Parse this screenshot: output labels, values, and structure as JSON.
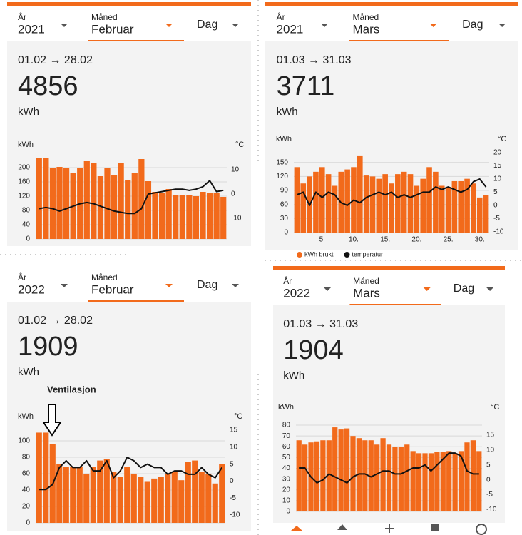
{
  "panels": [
    {
      "year_label": "År",
      "year": "2021",
      "month_label": "Måned",
      "month": "Februar",
      "day_label": "Dag",
      "range": "01.02 → 28.02",
      "total": 4856,
      "unit": "kWh",
      "chart": {
        "type": "bar",
        "y_label": "kWh",
        "y2_label": "°C",
        "grid": true,
        "x": [
          1,
          2,
          3,
          4,
          5,
          6,
          7,
          8,
          9,
          10,
          11,
          12,
          13,
          14,
          15,
          16,
          17,
          18,
          19,
          20,
          21,
          22,
          23,
          24,
          25,
          26,
          27,
          28
        ],
        "xlim": [
          0.5,
          28.5
        ],
        "ylim": [
          0,
          226
        ],
        "yticks": [
          0,
          40,
          80,
          120,
          160,
          200
        ],
        "y2lim": [
          -18.5,
          14.7
        ],
        "y2ticks": [
          -10,
          0,
          10
        ],
        "series": [
          {
            "color": "#f26a1b",
            "values": [
              226,
              226,
              200,
              202,
              198,
              186,
              200,
              218,
              212,
              176,
              200,
              180,
              212,
              166,
              186,
              224,
              162,
              132,
              128,
              140,
              122,
              124,
              124,
              120,
              132,
              130,
              128,
              118
            ]
          },
          {
            "type": "line",
            "axis": "y2",
            "color": "#111111",
            "values": [
              -6,
              -5.5,
              -6,
              -7,
              -6,
              -5,
              -4,
              -3.5,
              -4,
              -5,
              -6,
              -7,
              -7.5,
              -8,
              -8,
              -6,
              0,
              0.5,
              1,
              1.5,
              2,
              2,
              1.5,
              2,
              3,
              5.5,
              1,
              1.5
            ]
          }
        ]
      }
    },
    {
      "year_label": "År",
      "year": "2021",
      "month_label": "Måned",
      "month": "Mars",
      "day_label": "Dag",
      "range": "01.03 → 31.03",
      "total": 3711,
      "unit": "kWh",
      "chart": {
        "type": "bar",
        "y_label": "kWh",
        "y2_label": "°C",
        "grid": true,
        "legend": "bottom-left",
        "x": [
          1,
          2,
          3,
          4,
          5,
          6,
          7,
          8,
          9,
          10,
          11,
          12,
          13,
          14,
          15,
          16,
          17,
          18,
          19,
          20,
          21,
          22,
          23,
          24,
          25,
          26,
          27,
          28,
          29,
          30,
          31
        ],
        "xlim": [
          0.5,
          31.5
        ],
        "xticks": [
          {
            "value": 5,
            "label": "5."
          },
          {
            "value": 10,
            "label": "10."
          },
          {
            "value": 15,
            "label": "15."
          },
          {
            "value": 20,
            "label": "20."
          },
          {
            "value": 25,
            "label": "25."
          },
          {
            "value": 30,
            "label": "30."
          }
        ],
        "ylim": [
          0,
          171
        ],
        "yticks": [
          0,
          30,
          60,
          90,
          120,
          150
        ],
        "y2lim": [
          -10.3,
          20
        ],
        "y2ticks": [
          -10,
          -5,
          0,
          5,
          10,
          15,
          20
        ],
        "series": [
          {
            "name": "kWh brukt",
            "color": "#f26a1b",
            "values": [
              140,
              105,
              120,
              130,
              140,
              125,
              100,
              130,
              135,
              140,
              165,
              122,
              120,
              115,
              125,
              105,
              125,
              130,
              125,
              100,
              115,
              140,
              130,
              100,
              95,
              110,
              110,
              115,
              105,
              75,
              80
            ]
          },
          {
            "name": "temperatur",
            "type": "line",
            "axis": "y2",
            "color": "#111111",
            "values": [
              4,
              5,
              0,
              5,
              3,
              5,
              4,
              1,
              0,
              2,
              1,
              3,
              4,
              5,
              4,
              5,
              3,
              4,
              3,
              4,
              5,
              5,
              7,
              6,
              7,
              6,
              5,
              6,
              9,
              10,
              7
            ]
          }
        ]
      }
    },
    {
      "year_label": "År",
      "year": "2022",
      "month_label": "Måned",
      "month": "Februar",
      "day_label": "Dag",
      "range": "01.02 → 28.02",
      "total": 1909,
      "unit": "kWh",
      "annotation": "Ventilasjon",
      "chart": {
        "type": "bar",
        "y_label": "kWh",
        "y2_label": "°C",
        "grid": true,
        "x": [
          1,
          2,
          3,
          4,
          5,
          6,
          7,
          8,
          9,
          10,
          11,
          12,
          13,
          14,
          15,
          16,
          17,
          18,
          19,
          20,
          21,
          22,
          23,
          24,
          25,
          26,
          27,
          28
        ],
        "xlim": [
          0.5,
          28.5
        ],
        "ylim": [
          0,
          113
        ],
        "yticks": [
          0,
          20,
          40,
          60,
          80,
          100
        ],
        "y2lim": [
          -12.3,
          15
        ],
        "y2ticks": [
          -10,
          -5,
          0,
          5,
          10,
          15
        ],
        "series": [
          {
            "color": "#f26a1b",
            "values": [
              110,
              110,
              96,
              72,
              68,
              68,
              68,
              60,
              68,
              76,
              78,
              62,
              56,
              68,
              60,
              56,
              50,
              54,
              56,
              60,
              62,
              52,
              74,
              76,
              62,
              60,
              48,
              72
            ]
          },
          {
            "type": "line",
            "axis": "y2",
            "color": "#111111",
            "values": [
              -2.5,
              -2.5,
              -1,
              4,
              6,
              4,
              4,
              6,
              3,
              3,
              6,
              1,
              3,
              7,
              6,
              4,
              5,
              4,
              4,
              2,
              3,
              3,
              2,
              2,
              4,
              2,
              1,
              4
            ]
          }
        ]
      }
    },
    {
      "year_label": "År",
      "year": "2022",
      "month_label": "Måned",
      "month": "Mars",
      "day_label": "Dag",
      "range": "01.03 → 31.03",
      "total": 1904,
      "unit": "kWh",
      "chart": {
        "type": "bar",
        "y_label": "kWh",
        "y2_label": "°C",
        "grid": true,
        "x": [
          1,
          2,
          3,
          4,
          5,
          6,
          7,
          8,
          9,
          10,
          11,
          12,
          13,
          14,
          15,
          16,
          17,
          18,
          19,
          20,
          21,
          22,
          23,
          24,
          25,
          26,
          27,
          28,
          29,
          30,
          31
        ],
        "xlim": [
          0.5,
          31.5
        ],
        "ylim": [
          0,
          84
        ],
        "yticks": [
          0,
          10,
          20,
          30,
          40,
          50,
          60,
          70,
          80
        ],
        "y2lim": [
          -10.6,
          19.8
        ],
        "y2ticks": [
          -10,
          -5,
          0,
          5,
          10,
          15
        ],
        "series": [
          {
            "color": "#f26a1b",
            "values": [
              66,
              62,
              64,
              65,
              66,
              66,
              78,
              76,
              77,
              70,
              68,
              66,
              66,
              62,
              68,
              62,
              60,
              60,
              62,
              56,
              54,
              54,
              54,
              55,
              55,
              56,
              54,
              56,
              64,
              66,
              56
            ]
          },
          {
            "type": "line",
            "axis": "y2",
            "color": "#111111",
            "values": [
              4,
              4,
              1,
              -1,
              0,
              2,
              1,
              0,
              -1,
              1,
              2,
              2,
              1,
              2,
              3,
              3,
              2,
              2,
              3,
              4,
              4,
              5,
              3,
              5,
              7,
              9,
              9,
              8,
              3,
              2,
              2
            ]
          }
        ]
      }
    }
  ]
}
